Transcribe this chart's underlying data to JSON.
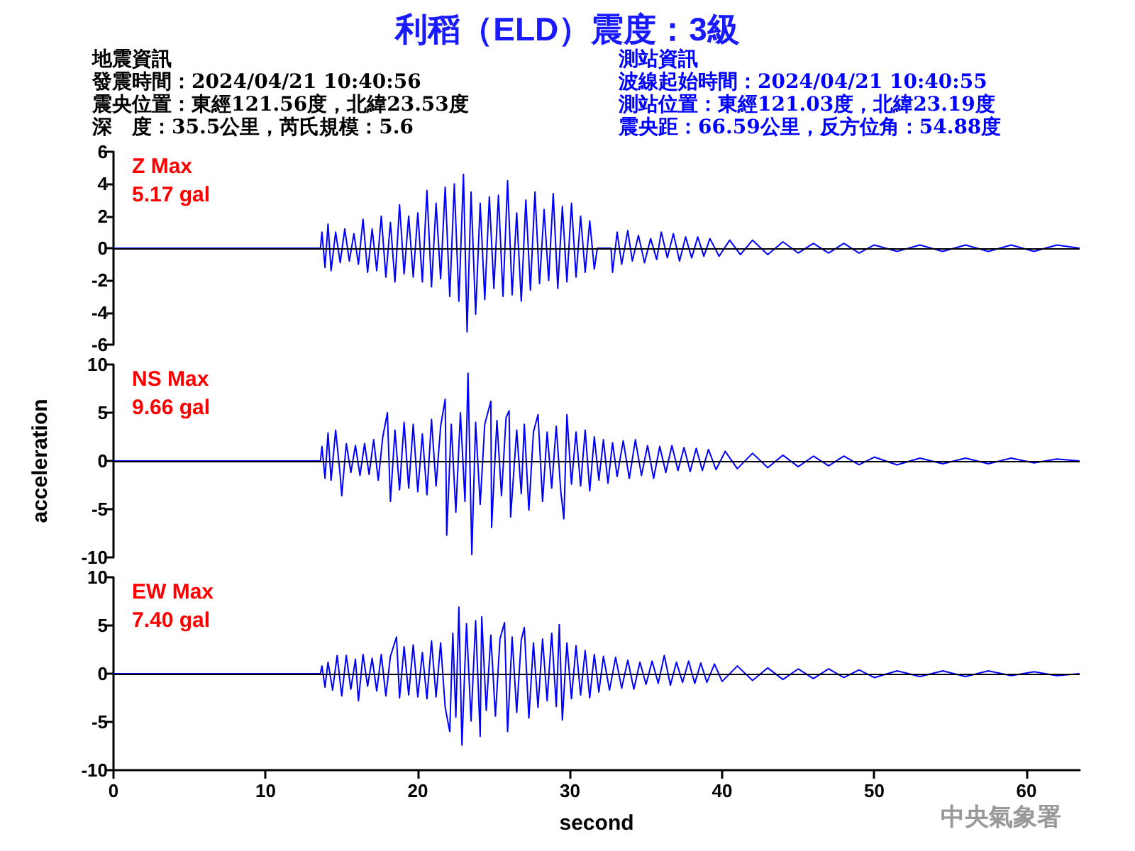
{
  "chart_data": [
    {
      "type": "line",
      "title": "利稻（ELD）震度：3級",
      "annotations": [
        "Z Max",
        "5.17 gal",
        "地震資訊",
        "發震時間：2024/04/21 10:40:56",
        "震央位置：東經121.56度，北緯23.53度",
        "深　度：35.5公里，芮氏規模：5.6",
        "測站資訊",
        "波線起始時間：2024/04/21 10:40:55",
        "測站位置：東經121.03度，北緯23.19度",
        "震央距：66.59公里，反方位角：54.88度"
      ],
      "xlim": [
        0,
        63.5
      ],
      "ylim": [
        -6,
        6
      ],
      "yticks": [
        -6,
        -4,
        -2,
        0,
        2,
        4,
        6
      ],
      "tick_labels": "y",
      "grid": false,
      "ref_lines": [
        {
          "axis": "y",
          "value": 0,
          "color": "#000000"
        }
      ],
      "series": [
        {
          "color": "#0000ff",
          "x": [
            0,
            13.6,
            13.7,
            13.9,
            14.1,
            14.3,
            14.6,
            14.9,
            15.2,
            15.5,
            15.8,
            16.1,
            16.4,
            16.7,
            17.0,
            17.3,
            17.6,
            17.9,
            18.2,
            18.5,
            18.8,
            19.1,
            19.4,
            19.7,
            20.0,
            20.3,
            20.6,
            20.9,
            21.2,
            21.5,
            21.8,
            22.1,
            22.4,
            22.7,
            23.0,
            23.24,
            23.5,
            23.8,
            24.1,
            24.4,
            24.7,
            25.0,
            25.3,
            25.6,
            25.9,
            26.2,
            26.5,
            26.8,
            27.1,
            27.4,
            27.7,
            28.0,
            28.3,
            28.6,
            28.9,
            29.2,
            29.5,
            29.8,
            30.1,
            30.4,
            30.7,
            31.0,
            31.3,
            31.6,
            31.8,
            32.7,
            32.8,
            33.1,
            33.4,
            33.8,
            34.1,
            34.5,
            34.9,
            35.3,
            35.7,
            36.0,
            36.4,
            36.8,
            37.2,
            37.6,
            38.0,
            38.4,
            38.8,
            39.2,
            39.8,
            40.5,
            41.2,
            42,
            43,
            44,
            45,
            46,
            47,
            48,
            49,
            50,
            51.5,
            53,
            54.5,
            56,
            57.5,
            59,
            60.5,
            62,
            63.5
          ],
          "values": [
            0,
            0,
            1.0,
            -1.2,
            1.5,
            -1.4,
            1.0,
            -0.9,
            1.2,
            -0.8,
            0.9,
            -1.0,
            1.8,
            -1.5,
            1.2,
            -1.4,
            2.0,
            -1.8,
            1.6,
            -2.1,
            2.7,
            -1.6,
            2.0,
            -1.8,
            2.2,
            -2.1,
            3.6,
            -2.4,
            2.8,
            -1.9,
            3.8,
            -3.0,
            4.0,
            -3.3,
            4.6,
            -5.2,
            3.5,
            -4.1,
            2.8,
            -3.2,
            3.2,
            -2.5,
            3.3,
            -3.0,
            4.2,
            -2.9,
            2.2,
            -3.3,
            3.0,
            -2.6,
            3.5,
            -2.2,
            2.4,
            -2.0,
            3.4,
            -2.5,
            2.6,
            -2.1,
            2.8,
            -1.8,
            2.0,
            -1.5,
            1.7,
            -1.3,
            0,
            0,
            -1.5,
            1.0,
            -1.0,
            1.1,
            -0.8,
            0.8,
            -0.9,
            0.6,
            -0.7,
            1.0,
            -0.6,
            0.9,
            -0.8,
            0.7,
            -0.6,
            0.7,
            -0.5,
            0.6,
            -0.5,
            0.5,
            -0.4,
            0.5,
            -0.4,
            0.4,
            -0.3,
            0.3,
            -0.3,
            0.3,
            -0.3,
            0.2,
            -0.2,
            0.2,
            -0.2,
            0.2,
            -0.2,
            0.2,
            -0.2,
            0.2,
            0
          ]
        }
      ]
    },
    {
      "type": "line",
      "ylabel": "acceleration",
      "annotations": [
        "NS Max",
        "9.66 gal"
      ],
      "xlim": [
        0,
        63.5
      ],
      "ylim": [
        -10,
        10
      ],
      "yticks": [
        -10,
        -5,
        0,
        5,
        10
      ],
      "tick_labels": "y",
      "grid": false,
      "ref_lines": [
        {
          "axis": "y",
          "value": 0,
          "color": "#000000"
        }
      ],
      "series": [
        {
          "color": "#0000ff",
          "x": [
            0,
            13.6,
            13.7,
            13.9,
            14.1,
            14.3,
            14.6,
            14.9,
            15.0,
            15.3,
            15.6,
            15.9,
            16.2,
            16.5,
            16.8,
            17.1,
            17.4,
            17.7,
            18.0,
            18.2,
            18.5,
            18.8,
            19.1,
            19.4,
            19.7,
            20.0,
            20.3,
            20.6,
            20.9,
            21.2,
            21.5,
            21.8,
            21.9,
            22.2,
            22.5,
            22.8,
            23.1,
            23.3,
            23.55,
            23.8,
            24.1,
            24.4,
            24.8,
            24.85,
            25.2,
            25.5,
            25.8,
            26.0,
            26.1,
            26.5,
            26.8,
            27.0,
            27.3,
            27.6,
            27.9,
            28.2,
            28.5,
            28.8,
            29.1,
            29.4,
            29.6,
            29.8,
            30.1,
            30.4,
            30.7,
            31.0,
            31.3,
            31.6,
            31.9,
            32.2,
            32.5,
            32.8,
            33.1,
            33.5,
            33.9,
            34.3,
            34.7,
            35.1,
            35.5,
            35.9,
            36.3,
            36.7,
            37.1,
            37.5,
            37.9,
            38.3,
            38.7,
            39.1,
            39.6,
            40.2,
            41,
            42,
            43,
            44,
            45,
            46,
            47,
            48,
            49,
            50,
            51.5,
            53,
            54.5,
            56,
            57.5,
            59,
            60.5,
            62,
            63.5
          ],
          "values": [
            0,
            0,
            1.5,
            -1.8,
            2.9,
            -2.0,
            3.2,
            -1.5,
            -3.6,
            1.8,
            -1.2,
            1.6,
            -1.5,
            1.8,
            -1.4,
            2.2,
            -2.0,
            2.5,
            5.0,
            -4.2,
            3.2,
            -3.0,
            4.0,
            -2.8,
            3.8,
            -3.2,
            2.8,
            -3.5,
            4.3,
            -2.6,
            3.6,
            6.4,
            -7.7,
            3.8,
            -5.3,
            5.0,
            -4.2,
            9.1,
            -9.7,
            4.0,
            -4.5,
            3.8,
            6.2,
            -6.9,
            4.2,
            -3.6,
            4.5,
            5.2,
            -5.8,
            3.2,
            -3.4,
            3.8,
            -5.1,
            3.0,
            4.8,
            -4.2,
            3.0,
            -2.8,
            3.6,
            -3.2,
            -6.0,
            4.8,
            -2.4,
            3.0,
            -2.6,
            3.2,
            -3.1,
            2.5,
            -2.0,
            2.2,
            -2.3,
            1.9,
            -1.6,
            2.1,
            -1.8,
            2.2,
            -1.5,
            1.6,
            -1.8,
            1.5,
            -1.2,
            1.6,
            -1.0,
            1.4,
            -1.1,
            1.3,
            -1.0,
            1.2,
            -0.9,
            1.0,
            -0.8,
            0.8,
            -0.7,
            0.6,
            -0.6,
            0.5,
            -0.5,
            0.5,
            -0.4,
            0.4,
            -0.4,
            0.3,
            -0.3,
            0.3,
            -0.3,
            0.3,
            -0.2,
            0.2,
            0
          ]
        }
      ]
    },
    {
      "type": "line",
      "xlabel": "second",
      "annotations": [
        "EW Max",
        "7.40 gal",
        "中央氣象署"
      ],
      "xlim": [
        0,
        63.5
      ],
      "xticks": [
        0,
        10,
        20,
        30,
        40,
        50,
        60
      ],
      "ylim": [
        -10,
        10
      ],
      "yticks": [
        -10,
        -5,
        0,
        5,
        10
      ],
      "grid": false,
      "ref_lines": [
        {
          "axis": "y",
          "value": 0,
          "color": "#000000"
        }
      ],
      "series": [
        {
          "color": "#0000ff",
          "x": [
            0,
            13.6,
            13.7,
            13.9,
            14.1,
            14.4,
            14.7,
            15.0,
            15.3,
            15.6,
            15.9,
            16.1,
            16.4,
            16.7,
            17.0,
            17.3,
            17.6,
            17.9,
            18.2,
            18.6,
            18.8,
            19.1,
            19.4,
            19.7,
            20.0,
            20.3,
            20.6,
            20.9,
            21.2,
            21.5,
            21.8,
            22.1,
            22.3,
            22.5,
            22.7,
            22.9,
            23.2,
            23.5,
            23.8,
            24.1,
            24.2,
            24.5,
            24.8,
            25.1,
            25.4,
            25.7,
            25.9,
            26.2,
            26.5,
            26.8,
            27.0,
            27.3,
            27.6,
            27.9,
            28.2,
            28.5,
            28.8,
            29.1,
            29.3,
            29.5,
            29.8,
            30.1,
            30.4,
            30.7,
            31.0,
            31.3,
            31.6,
            31.9,
            32.2,
            32.6,
            33.0,
            33.4,
            33.8,
            34.2,
            34.6,
            35.0,
            35.4,
            35.8,
            36.2,
            36.6,
            37.0,
            37.4,
            37.8,
            38.2,
            38.6,
            39.0,
            39.5,
            40,
            41,
            42,
            43,
            44,
            45,
            46,
            47,
            48,
            49,
            50,
            51.5,
            53,
            54.5,
            56,
            57.5,
            59,
            60.5,
            62,
            63.5
          ],
          "values": [
            0,
            0,
            0.8,
            -1.4,
            1.2,
            -1.7,
            1.9,
            -2.3,
            1.9,
            -1.6,
            1.5,
            -2.8,
            2.0,
            -1.3,
            1.6,
            -1.8,
            2.0,
            -2.3,
            1.8,
            3.8,
            -2.5,
            2.8,
            -2.2,
            3.0,
            -2.4,
            2.2,
            -2.6,
            3.4,
            -2.4,
            3.2,
            -3.5,
            -6.0,
            4.2,
            -4.5,
            6.9,
            -7.4,
            5.2,
            -4.9,
            5.5,
            -6.5,
            5.9,
            -3.8,
            4.0,
            -4.4,
            3.6,
            5.3,
            -6.0,
            3.8,
            -4.0,
            3.5,
            4.8,
            -4.6,
            3.2,
            -3.5,
            3.6,
            -2.8,
            4.2,
            -3.4,
            5.1,
            -4.8,
            3.2,
            -2.6,
            2.9,
            -2.2,
            2.4,
            -2.5,
            2.0,
            -1.9,
            1.8,
            -1.7,
            1.7,
            -1.5,
            1.4,
            -1.6,
            1.2,
            -1.1,
            1.3,
            -1.0,
            1.9,
            -1.2,
            1.2,
            -0.9,
            1.3,
            -1.0,
            1.1,
            -0.9,
            1.0,
            -0.8,
            0.8,
            -0.7,
            0.6,
            -0.6,
            0.5,
            -0.5,
            0.5,
            -0.4,
            0.4,
            -0.4,
            0.3,
            -0.3,
            0.3,
            -0.3,
            0.3,
            -0.2,
            0.2,
            -0.2,
            0
          ]
        }
      ]
    }
  ]
}
